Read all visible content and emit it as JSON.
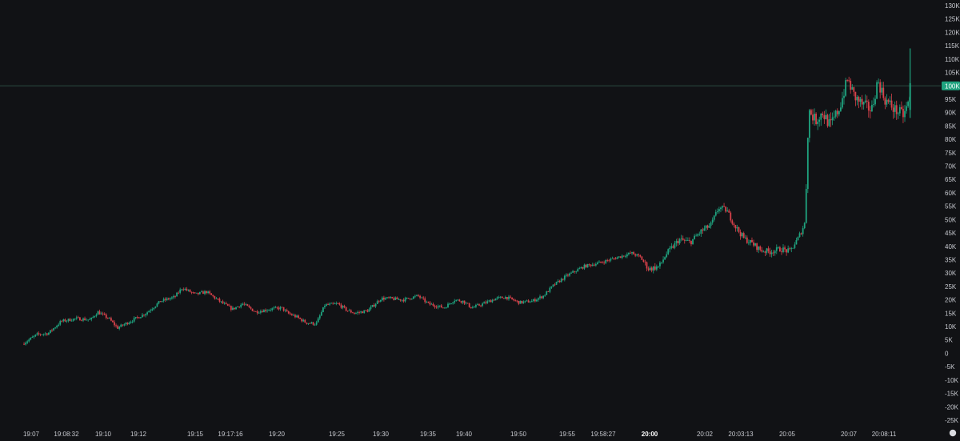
{
  "colors": {
    "background": "#111215",
    "up": "#1fa37f",
    "down": "#d8414a",
    "price_line": "#2b4a40",
    "price_tag": "#1fa37f",
    "axis_text": "#c8cad0"
  },
  "icons": {
    "settings": "settings-icon"
  },
  "price_line": {
    "value": 100000,
    "label": "100K"
  },
  "chart_data": {
    "type": "candlestick",
    "ylim": [
      -27000,
      131000
    ],
    "y_ticks": [
      {
        "value": 130000,
        "label": "130K"
      },
      {
        "value": 125000,
        "label": "125K"
      },
      {
        "value": 120000,
        "label": "120K"
      },
      {
        "value": 115000,
        "label": "115K"
      },
      {
        "value": 110000,
        "label": "110K"
      },
      {
        "value": 105000,
        "label": "105K"
      },
      {
        "value": 95000,
        "label": "95K"
      },
      {
        "value": 90000,
        "label": "90K"
      },
      {
        "value": 85000,
        "label": "85K"
      },
      {
        "value": 80000,
        "label": "80K"
      },
      {
        "value": 75000,
        "label": "75K"
      },
      {
        "value": 70000,
        "label": "70K"
      },
      {
        "value": 65000,
        "label": "65K"
      },
      {
        "value": 60000,
        "label": "60K"
      },
      {
        "value": 55000,
        "label": "55K"
      },
      {
        "value": 50000,
        "label": "50K"
      },
      {
        "value": 45000,
        "label": "45K"
      },
      {
        "value": 40000,
        "label": "40K"
      },
      {
        "value": 35000,
        "label": "35K"
      },
      {
        "value": 30000,
        "label": "30K"
      },
      {
        "value": 25000,
        "label": "25K"
      },
      {
        "value": 20000,
        "label": "20K"
      },
      {
        "value": 15000,
        "label": "15K"
      },
      {
        "value": 10000,
        "label": "10K"
      },
      {
        "value": 5000,
        "label": "5K"
      },
      {
        "value": 0,
        "label": "0"
      },
      {
        "value": -5000,
        "label": "-5K"
      },
      {
        "value": -10000,
        "label": "-10K"
      },
      {
        "value": -15000,
        "label": "-15K"
      },
      {
        "value": -20000,
        "label": "-20K"
      },
      {
        "value": -25000,
        "label": "-25K"
      }
    ],
    "x_ticks": [
      {
        "label": "19:07",
        "bold": false
      },
      {
        "label": "19:08:32",
        "bold": false
      },
      {
        "label": "19:10",
        "bold": false
      },
      {
        "label": "19:12",
        "bold": false
      },
      {
        "label": "19:15",
        "bold": false
      },
      {
        "label": "19:17:16",
        "bold": false
      },
      {
        "label": "19:20",
        "bold": false
      },
      {
        "label": "19:25",
        "bold": false
      },
      {
        "label": "19:30",
        "bold": false
      },
      {
        "label": "19:35",
        "bold": false
      },
      {
        "label": "19:40",
        "bold": false
      },
      {
        "label": "19:50",
        "bold": false
      },
      {
        "label": "19:55",
        "bold": false
      },
      {
        "label": "19:58:27",
        "bold": false
      },
      {
        "label": "20:00",
        "bold": true
      },
      {
        "label": "20:02",
        "bold": false
      },
      {
        "label": "20:03:13",
        "bold": false
      },
      {
        "label": "20:05",
        "bold": false
      },
      {
        "label": "20:07",
        "bold": false
      },
      {
        "label": "20:08:11",
        "bold": false
      }
    ],
    "price_points": [
      [
        0.0,
        3500
      ],
      [
        0.017,
        7000
      ],
      [
        0.03,
        7500
      ],
      [
        0.045,
        12000
      ],
      [
        0.063,
        13000
      ],
      [
        0.079,
        12500
      ],
      [
        0.087,
        15500
      ],
      [
        0.1,
        13000
      ],
      [
        0.11,
        9500
      ],
      [
        0.125,
        12000
      ],
      [
        0.143,
        15000
      ],
      [
        0.16,
        19500
      ],
      [
        0.176,
        21000
      ],
      [
        0.185,
        24500
      ],
      [
        0.2,
        22000
      ],
      [
        0.213,
        23000
      ],
      [
        0.228,
        19500
      ],
      [
        0.243,
        16500
      ],
      [
        0.255,
        18500
      ],
      [
        0.27,
        15500
      ],
      [
        0.287,
        16500
      ],
      [
        0.3,
        17000
      ],
      [
        0.307,
        15000
      ],
      [
        0.318,
        13500
      ],
      [
        0.328,
        11500
      ],
      [
        0.34,
        11000
      ],
      [
        0.35,
        18000
      ],
      [
        0.365,
        18500
      ],
      [
        0.376,
        16000
      ],
      [
        0.385,
        15000
      ],
      [
        0.4,
        16000
      ],
      [
        0.415,
        20500
      ],
      [
        0.425,
        20500
      ],
      [
        0.441,
        20000
      ],
      [
        0.458,
        21500
      ],
      [
        0.47,
        18500
      ],
      [
        0.488,
        17000
      ],
      [
        0.5,
        20000
      ],
      [
        0.51,
        19500
      ],
      [
        0.52,
        17000
      ],
      [
        0.533,
        18500
      ],
      [
        0.548,
        20500
      ],
      [
        0.56,
        21000
      ],
      [
        0.575,
        19000
      ],
      [
        0.59,
        19500
      ],
      [
        0.603,
        21500
      ],
      [
        0.615,
        25500
      ],
      [
        0.63,
        29000
      ],
      [
        0.65,
        32500
      ],
      [
        0.67,
        34000
      ],
      [
        0.69,
        36000
      ],
      [
        0.705,
        37500
      ],
      [
        0.715,
        36000
      ],
      [
        0.725,
        31500
      ],
      [
        0.737,
        32500
      ],
      [
        0.745,
        37000
      ],
      [
        0.76,
        42500
      ],
      [
        0.773,
        41500
      ],
      [
        0.785,
        45500
      ],
      [
        0.797,
        48000
      ],
      [
        0.806,
        54500
      ],
      [
        0.815,
        53500
      ],
      [
        0.825,
        47500
      ],
      [
        0.835,
        43000
      ],
      [
        0.845,
        41000
      ],
      [
        0.855,
        38500
      ],
      [
        0.865,
        38000
      ],
      [
        0.878,
        39000
      ],
      [
        0.888,
        38000
      ],
      [
        0.898,
        43000
      ],
      [
        0.906,
        49000
      ],
      [
        0.908,
        72000
      ],
      [
        0.91,
        91000
      ],
      [
        0.918,
        87000
      ],
      [
        0.926,
        90000
      ],
      [
        0.935,
        85000
      ],
      [
        0.946,
        92000
      ],
      [
        0.955,
        102500
      ],
      [
        0.963,
        96000
      ],
      [
        0.972,
        93000
      ],
      [
        0.983,
        91000
      ],
      [
        0.99,
        102000
      ],
      [
        0.998,
        95000
      ],
      [
        1.01,
        91000
      ],
      [
        1.02,
        89000
      ],
      [
        1.027,
        95000
      ]
    ]
  }
}
